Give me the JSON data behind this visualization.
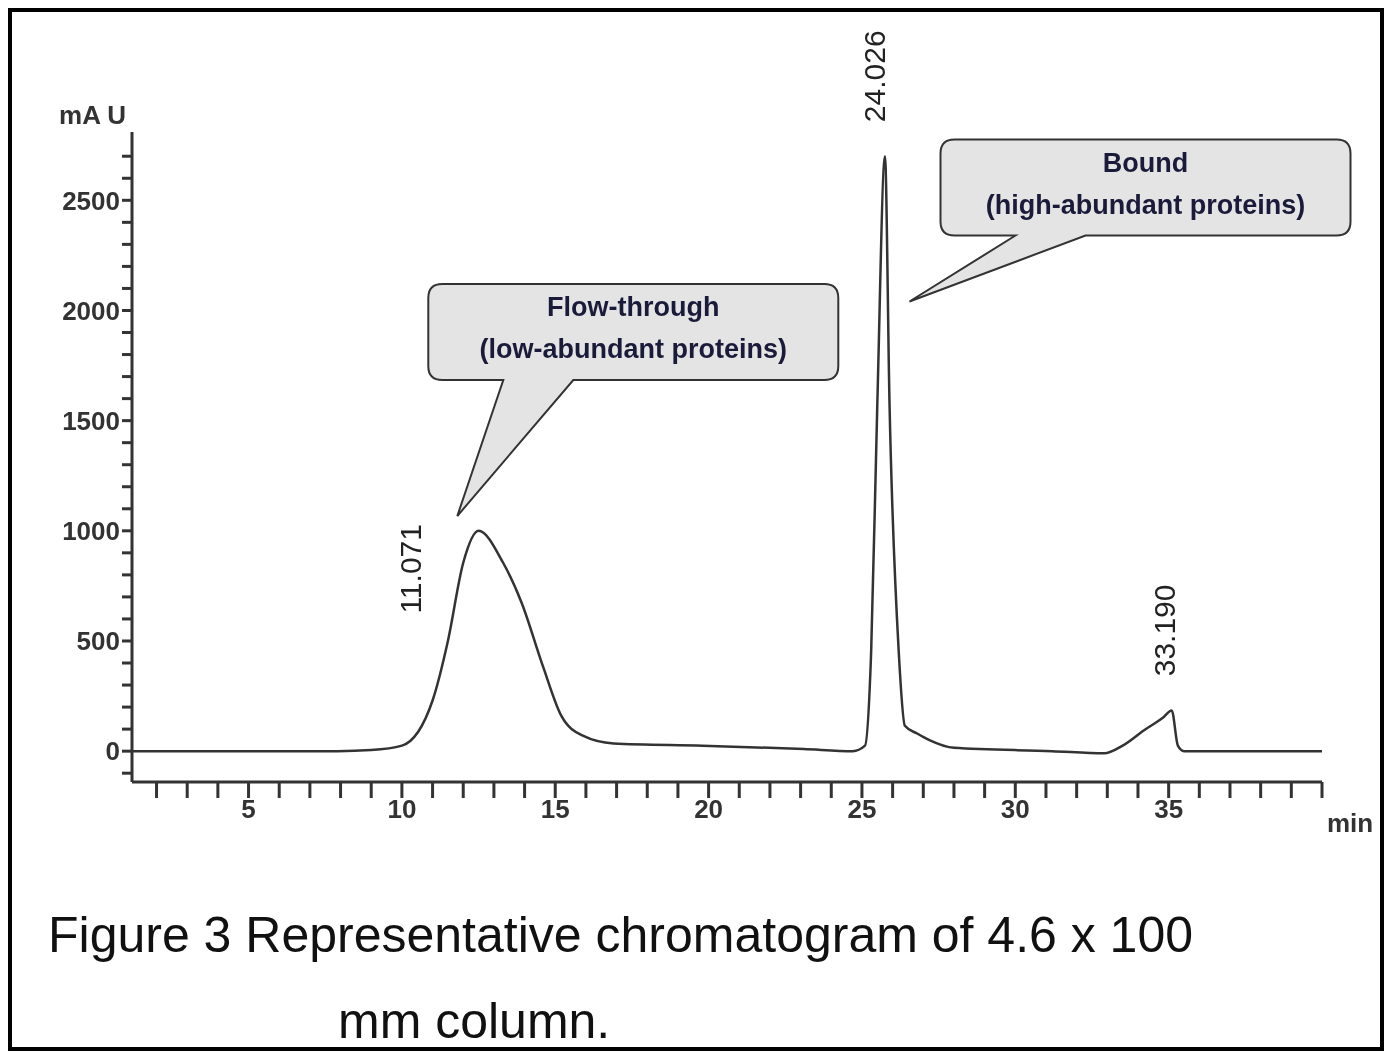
{
  "chart_data": {
    "type": "line",
    "title": "Figure 3 Representative chromatogram of 4.6 x 100 mm column.",
    "xlabel": "min",
    "ylabel": "mA U",
    "x": [
      1.2,
      5,
      7.9,
      9,
      10,
      11,
      11.5,
      12,
      12.5,
      13.3,
      13.9,
      14.6,
      15.2,
      15.9,
      16.9,
      19.8,
      23.1,
      24.7,
      25.1,
      25.3,
      25.5,
      25.75,
      25.9,
      26.2,
      26.4,
      26.8,
      27.2,
      28,
      31.2,
      32.9,
      33.5,
      34.2,
      34.8,
      35.1,
      35.3,
      35.5,
      40
    ],
    "series": [
      {
        "color": "#333333",
        "values": [
          0,
          0,
          0,
          5,
          25,
          230,
          500,
          855,
          1000,
          855,
          675,
          385,
          160,
          70,
          35,
          25,
          10,
          0,
          25,
          450,
          1570,
          2700,
          1570,
          450,
          115,
          80,
          50,
          15,
          0,
          -10,
          25,
          95,
          150,
          185,
          25,
          0,
          0
        ]
      }
    ],
    "xlim": [
      1.2,
      40
    ],
    "xticks": [
      {
        "value": 2,
        "label": null
      },
      {
        "value": 3,
        "label": null
      },
      {
        "value": 4,
        "label": null
      },
      5,
      {
        "value": 6,
        "label": null
      },
      {
        "value": 7,
        "label": null
      },
      {
        "value": 8,
        "label": null
      },
      {
        "value": 9,
        "label": null
      },
      10,
      {
        "value": 11,
        "label": null
      },
      {
        "value": 12,
        "label": null
      },
      {
        "value": 13,
        "label": null
      },
      {
        "value": 14,
        "label": null
      },
      15,
      {
        "value": 16,
        "label": null
      },
      {
        "value": 17,
        "label": null
      },
      {
        "value": 18,
        "label": null
      },
      {
        "value": 19,
        "label": null
      },
      20,
      {
        "value": 21,
        "label": null
      },
      {
        "value": 22,
        "label": null
      },
      {
        "value": 23,
        "label": null
      },
      {
        "value": 24,
        "label": null
      },
      25,
      {
        "value": 26,
        "label": null
      },
      {
        "value": 27,
        "label": null
      },
      {
        "value": 28,
        "label": null
      },
      {
        "value": 29,
        "label": null
      },
      30,
      {
        "value": 31,
        "label": null
      },
      {
        "value": 32,
        "label": null
      },
      {
        "value": 33,
        "label": null
      },
      {
        "value": 34,
        "label": null
      },
      35,
      {
        "value": 36,
        "label": null
      },
      {
        "value": 37,
        "label": null
      },
      {
        "value": 38,
        "label": null
      },
      {
        "value": 39,
        "label": null
      },
      {
        "value": 40,
        "label": null
      }
    ],
    "ylim": [
      -140,
      2810
    ],
    "yticks": [
      {
        "value": -100,
        "label": null
      },
      0,
      {
        "value": 100,
        "label": null
      },
      {
        "value": 200,
        "label": null
      },
      {
        "value": 300,
        "label": null
      },
      {
        "value": 400,
        "label": null
      },
      500,
      {
        "value": 600,
        "label": null
      },
      {
        "value": 700,
        "label": null
      },
      {
        "value": 800,
        "label": null
      },
      {
        "value": 900,
        "label": null
      },
      1000,
      {
        "value": 1100,
        "label": null
      },
      {
        "value": 1200,
        "label": null
      },
      {
        "value": 1300,
        "label": null
      },
      {
        "value": 1400,
        "label": null
      },
      1500,
      {
        "value": 1600,
        "label": null
      },
      {
        "value": 1700,
        "label": null
      },
      {
        "value": 1800,
        "label": null
      },
      {
        "value": 1900,
        "label": null
      },
      2000,
      {
        "value": 2100,
        "label": null
      },
      {
        "value": 2200,
        "label": null
      },
      {
        "value": 2300,
        "label": null
      },
      {
        "value": 2400,
        "label": null
      },
      2500,
      {
        "value": 2600,
        "label": null
      },
      {
        "value": 2700,
        "label": null
      }
    ],
    "grid": false,
    "legend": false,
    "marker": "none",
    "line_style": "solid",
    "annotations": [
      {
        "text": "11.071",
        "x": 12.5,
        "y": 1000
      },
      {
        "text": "24.026",
        "x": 25.75,
        "y": 2700
      },
      {
        "text": "33.190",
        "x": 35.1,
        "y": 185
      },
      "Flow-through\n(low-abundant proteins)",
      "Bound\n(high-abundant proteins)"
    ]
  }
}
